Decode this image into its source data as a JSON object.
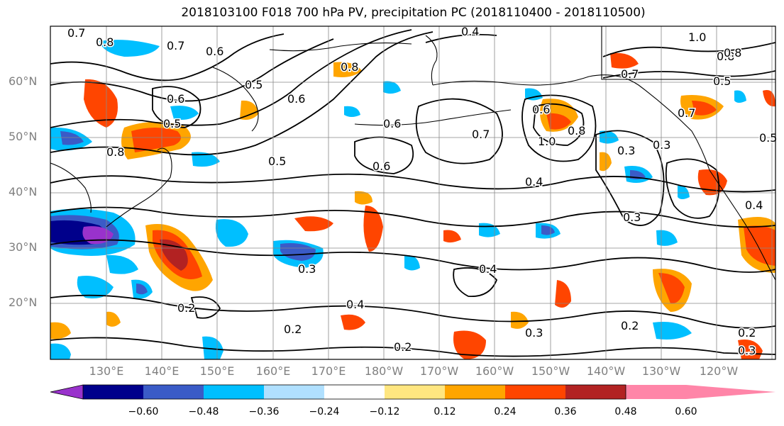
{
  "title": "2018103100 F018 700 hPa PV, precipitation PC (2018110400 - 2018110500)",
  "axes": {
    "lat_labels": [
      "60°N",
      "50°N",
      "40°N",
      "30°N",
      "20°N"
    ],
    "lon_labels": [
      "130°E",
      "140°E",
      "150°E",
      "160°E",
      "170°E",
      "180°W",
      "170°W",
      "160°W",
      "150°W",
      "140°W",
      "130°W",
      "120°W"
    ]
  },
  "colorbar": {
    "ticks": [
      "−0.60",
      "−0.48",
      "−0.36",
      "−0.24",
      "−0.12",
      "0.12",
      "0.24",
      "0.36",
      "0.48",
      "0.60"
    ],
    "colors": [
      "#9932cc",
      "#00008b",
      "#3a5bc7",
      "#00bfff",
      "#b0e0ff",
      "#ffffff",
      "#ffe680",
      "#ffa500",
      "#ff4500",
      "#b22222",
      "#ff85a8"
    ]
  },
  "contour_labels": [
    "0.7",
    "0.8",
    "0.7",
    "0.6",
    "0.5",
    "0.6",
    "0.5",
    "0.6",
    "0.4",
    "0.8",
    "0.8",
    "0.5",
    "0.6",
    "0.7",
    "0.6",
    "0.8",
    "0.6",
    "1.0",
    "0.8",
    "0.3",
    "0.4",
    "0.3",
    "0.3",
    "0.2",
    "0.4",
    "0.2",
    "0.3",
    "0.2",
    "0.2",
    "0.4",
    "0.3",
    "0.2",
    "1.0",
    "0.8",
    "0.7",
    "0.5",
    "0.4",
    "0.3",
    "0.7",
    "0.5"
  ]
}
